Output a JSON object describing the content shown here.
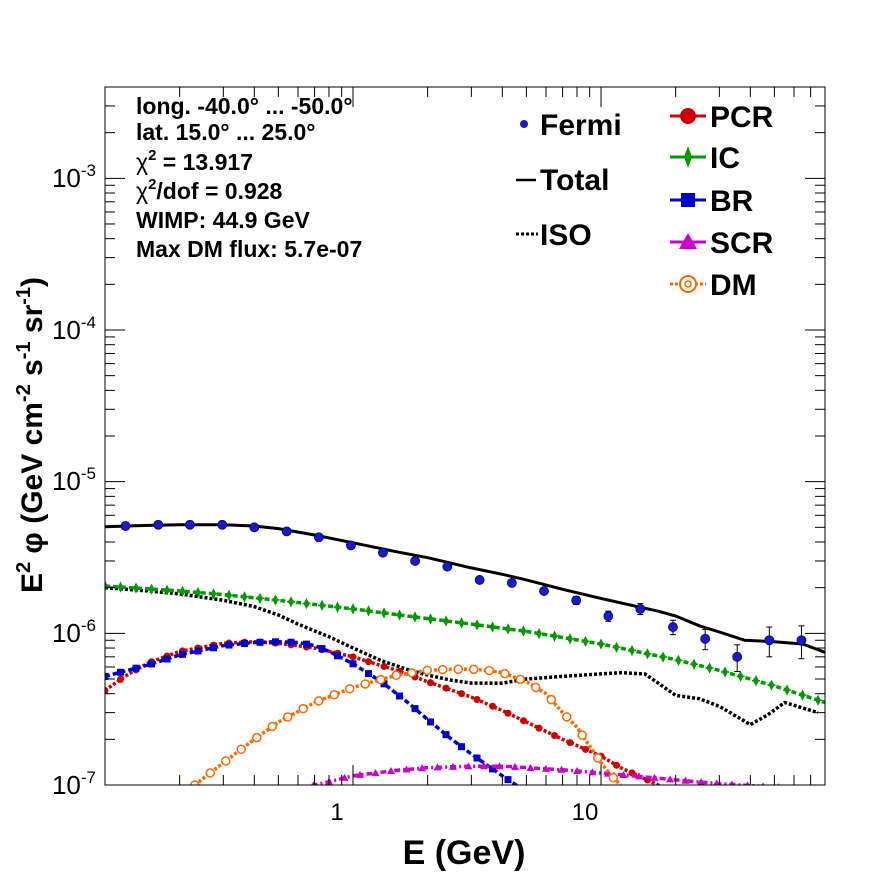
{
  "chart_data": {
    "type": "scatter",
    "xlabel": "E (GeV)",
    "ylabel": {
      "base": "E",
      "exp": "2",
      "mid": " φ (GeV cm",
      "exp2": "-2",
      "s": " s",
      "exp3": "-1",
      "sr": " sr",
      "exp4": "-1",
      "close": ")"
    },
    "x_scale": "log",
    "y_scale": "log",
    "xlim": [
      0.1,
      80
    ],
    "ylim": [
      1e-07,
      0.004
    ],
    "x_ticks": [
      {
        "value": 1,
        "label": "1"
      },
      {
        "value": 10,
        "label": "10"
      }
    ],
    "y_ticks": [
      {
        "value": 1e-07,
        "base": "10",
        "exp": "-7"
      },
      {
        "value": 1e-06,
        "base": "10",
        "exp": "-6"
      },
      {
        "value": 1e-05,
        "base": "10",
        "exp": "-5"
      },
      {
        "value": 0.0001,
        "base": "10",
        "exp": "-4"
      },
      {
        "value": 0.001,
        "base": "10",
        "exp": "-3"
      }
    ],
    "info_text": {
      "line1": "long. -40.0° ... -50.0°",
      "line2": "lat. 15.0° ... 25.0°",
      "chi_sym": "χ",
      "chi_exp": "2",
      "line3_rest": " = 13.917",
      "line4_rest": "/dof = 0.928",
      "line5": "WIMP: 44.9 GeV",
      "line6": "Max DM flux: 5.7e-07"
    },
    "legend_placement": "top-right",
    "legend": {
      "fermi": "Fermi",
      "total": "Total",
      "iso": "ISO",
      "pcr": "PCR",
      "ic": "IC",
      "br": "BR",
      "scr": "SCR",
      "dm": "DM"
    },
    "colors": {
      "fermi": "#1a1acc",
      "total": "#000000",
      "iso": "#000000",
      "pcr": "#cc0000",
      "ic": "#009900",
      "br": "#0000cc",
      "scr": "#cc00cc",
      "dm": "#ff6600"
    },
    "fermi_points": {
      "x": [
        0.121,
        0.164,
        0.22,
        0.297,
        0.4,
        0.54,
        0.728,
        0.981,
        1.32,
        1.78,
        2.4,
        3.24,
        4.37,
        5.89,
        7.94,
        10.7,
        14.4,
        19.5,
        26.3,
        35.4,
        47.7,
        64.3
      ],
      "y": [
        5.1e-06,
        5.2e-06,
        5.2e-06,
        5.2e-06,
        5e-06,
        4.7e-06,
        4.3e-06,
        3.8e-06,
        3.4e-06,
        3e-06,
        2.75e-06,
        2.25e-06,
        2.15e-06,
        1.9e-06,
        1.65e-06,
        1.3e-06,
        1.45e-06,
        1.1e-06,
        9.2e-07,
        7e-07,
        9e-07,
        9e-07
      ],
      "err": [
        5e-08,
        5e-08,
        5e-08,
        5e-08,
        5e-08,
        5e-08,
        5e-08,
        5e-08,
        5e-08,
        5e-08,
        5e-08,
        5e-08,
        6e-08,
        8e-08,
        1e-07,
        1e-07,
        1.2e-07,
        1.2e-07,
        1.4e-07,
        1.4e-07,
        2e-07,
        2.2e-07
      ]
    },
    "series": [
      {
        "name": "Total",
        "style": "solid",
        "x": [
          0.1,
          0.15,
          0.2,
          0.3,
          0.4,
          0.5,
          0.7,
          1.0,
          1.5,
          2.0,
          3.0,
          4.0,
          5.0,
          7.0,
          10,
          14,
          17,
          20,
          25,
          30,
          38,
          50,
          65,
          80
        ],
        "y": [
          5.05e-06,
          5.15e-06,
          5.2e-06,
          5.2e-06,
          5.1e-06,
          4.9e-06,
          4.45e-06,
          3.95e-06,
          3.45e-06,
          3.15e-06,
          2.7e-06,
          2.45e-06,
          2.25e-06,
          1.95e-06,
          1.7e-06,
          1.5e-06,
          1.4e-06,
          1.3e-06,
          1.12e-06,
          1.02e-06,
          9e-07,
          8.8e-07,
          8.5e-07,
          7.5e-07
        ]
      },
      {
        "name": "ISO",
        "style": "dotted",
        "x": [
          0.1,
          0.15,
          0.2,
          0.3,
          0.4,
          0.5,
          0.6,
          0.8,
          1.0,
          1.3,
          1.7,
          2.0,
          2.5,
          3.0,
          4.0,
          5.0,
          7.0,
          10,
          12,
          15,
          17,
          20,
          25,
          30,
          37,
          40,
          47,
          55,
          62,
          75
        ],
        "y": [
          2e-06,
          1.9e-06,
          1.82e-06,
          1.65e-06,
          1.5e-06,
          1.32e-06,
          1.15e-06,
          9.5e-07,
          8e-07,
          6.6e-07,
          5.7e-07,
          5.3e-07,
          4.9e-07,
          4.7e-07,
          4.7e-07,
          5e-07,
          5.2e-07,
          5.4e-07,
          5.5e-07,
          5.4e-07,
          4.7e-07,
          3.9e-07,
          3.7e-07,
          3.3e-07,
          2.7e-07,
          2.5e-07,
          2.9e-07,
          3.5e-07,
          3.3e-07,
          3e-07
        ]
      },
      {
        "name": "PCR",
        "style": "dotted",
        "x": [
          0.1,
          0.12,
          0.15,
          0.2,
          0.3,
          0.4,
          0.5,
          0.7,
          1.0,
          1.5,
          2.0,
          3.0,
          4.0,
          5.0,
          7.0,
          10,
          12,
          15,
          17,
          20
        ],
        "y": [
          4.2e-07,
          5.2e-07,
          6.4e-07,
          7.6e-07,
          8.6e-07,
          8.8e-07,
          8.6e-07,
          8e-07,
          7e-07,
          5.7e-07,
          4.8e-07,
          3.8e-07,
          3.1e-07,
          2.6e-07,
          2e-07,
          1.55e-07,
          1.3e-07,
          1.1e-07,
          1e-07,
          8.5e-08
        ]
      },
      {
        "name": "IC",
        "style": "dashed",
        "x": [
          0.1,
          0.2,
          0.3,
          0.5,
          1.0,
          2.0,
          3.0,
          5.0,
          10,
          20,
          30,
          50,
          80
        ],
        "y": [
          2.05e-06,
          1.9e-06,
          1.8e-06,
          1.65e-06,
          1.45e-06,
          1.25e-06,
          1.15e-06,
          1.03e-06,
          8.5e-07,
          6.7e-07,
          5.7e-07,
          4.5e-07,
          3.5e-07
        ]
      },
      {
        "name": "BR",
        "style": "dashed",
        "x": [
          0.1,
          0.15,
          0.2,
          0.3,
          0.4,
          0.5,
          0.6,
          0.7,
          0.8,
          1.0,
          1.3,
          1.7,
          2.0,
          2.5,
          3.0,
          4.0,
          5.0
        ],
        "y": [
          5.2e-07,
          6.2e-07,
          7.2e-07,
          8.3e-07,
          8.7e-07,
          8.8e-07,
          8.7e-07,
          8.3e-07,
          7.6e-07,
          6.3e-07,
          4.8e-07,
          3.4e-07,
          2.7e-07,
          2e-07,
          1.6e-07,
          1.15e-07,
          9e-08
        ]
      },
      {
        "name": "SCR",
        "style": "dashdot",
        "x": [
          0.6,
          0.8,
          1.0,
          1.5,
          2.0,
          3.0,
          4.0,
          5.0,
          7.0,
          10,
          15,
          20,
          30,
          50,
          70
        ],
        "y": [
          9.5e-08,
          1.05e-07,
          1.15e-07,
          1.25e-07,
          1.3e-07,
          1.33e-07,
          1.33e-07,
          1.3e-07,
          1.26e-07,
          1.2e-07,
          1.13e-07,
          1.08e-07,
          1.02e-07,
          9.7e-08,
          9.5e-08
        ]
      },
      {
        "name": "DM",
        "style": "dotted",
        "x": [
          0.23,
          0.3,
          0.4,
          0.5,
          0.7,
          1.0,
          1.5,
          2.0,
          2.5,
          3.0,
          3.5,
          4.0,
          5.0,
          6.0,
          7.0,
          8.0,
          9.0,
          10,
          11,
          12
        ],
        "y": [
          1e-07,
          1.4e-07,
          2e-07,
          2.6e-07,
          3.5e-07,
          4.4e-07,
          5.3e-07,
          5.7e-07,
          5.8e-07,
          5.8e-07,
          5.7e-07,
          5.5e-07,
          4.8e-07,
          4e-07,
          3e-07,
          2.4e-07,
          1.8e-07,
          1.4e-07,
          1.15e-07,
          1e-07
        ]
      }
    ]
  }
}
